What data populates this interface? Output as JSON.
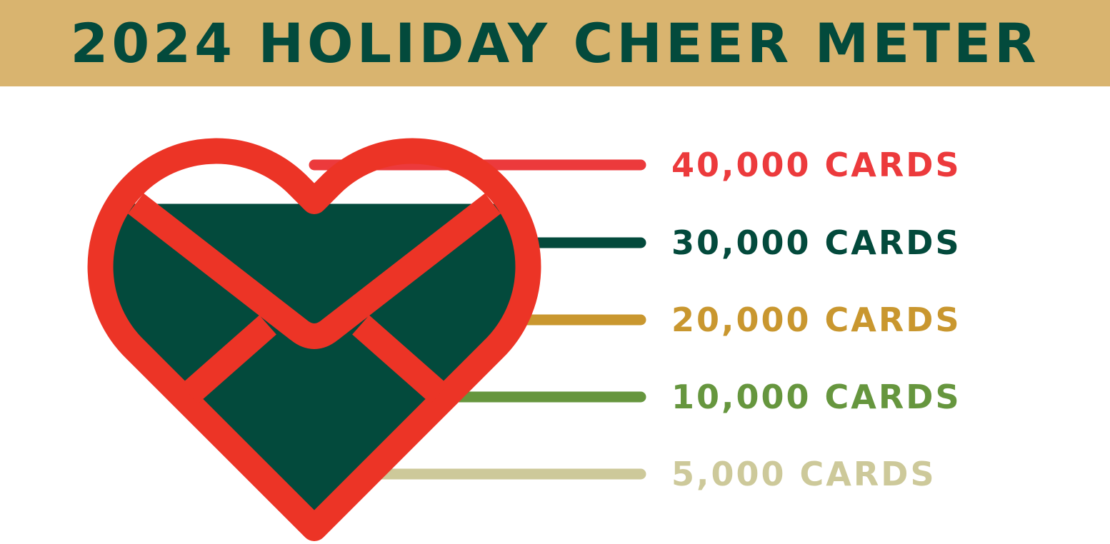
{
  "title": "2024 HOLIDAY CHEER METER",
  "colors": {
    "banner": "#d9b46f",
    "title": "#034a3c",
    "heart_outline": "#ec3426",
    "fill": "#034a3c"
  },
  "meter": {
    "icon": "heart-envelope-icon",
    "current_level_cards": 35000,
    "levels": [
      {
        "value": 40000,
        "label": "40,000 CARDS",
        "color": "#ec3a3c"
      },
      {
        "value": 30000,
        "label": "30,000 CARDS",
        "color": "#034a3c"
      },
      {
        "value": 20000,
        "label": "20,000 CARDS",
        "color": "#c9972f"
      },
      {
        "value": 10000,
        "label": "10,000 CARDS",
        "color": "#66963e"
      },
      {
        "value": 5000,
        "label": "5,000 CARDS",
        "color": "#cdc99a"
      }
    ]
  }
}
